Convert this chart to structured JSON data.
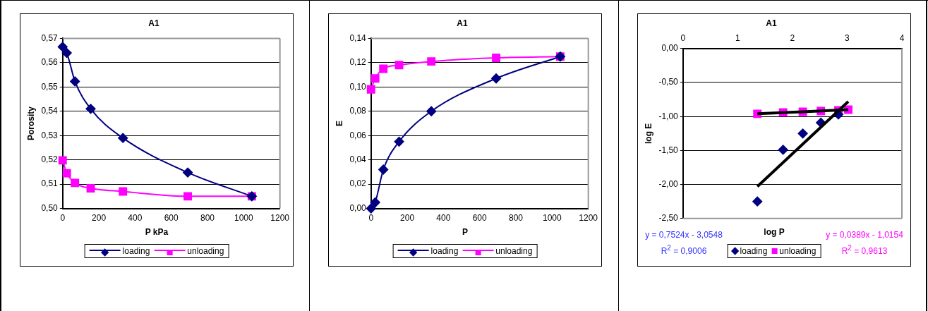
{
  "chart_data": [
    {
      "type": "line",
      "title": "A1",
      "xlabel": "P kPa",
      "ylabel": "Porosity",
      "x": [
        0,
        23,
        68,
        155,
        333,
        691,
        1045
      ],
      "series": [
        {
          "name": "loading",
          "color": "#000080",
          "marker": "diamond",
          "values": [
            0.5665,
            0.564,
            0.5523,
            0.541,
            0.529,
            0.5148,
            0.505
          ]
        },
        {
          "name": "unloading",
          "color": "#ff00ff",
          "marker": "square",
          "values": [
            0.5198,
            0.5145,
            0.5105,
            0.5083,
            0.507,
            0.505,
            0.505
          ]
        }
      ],
      "xlim": [
        0,
        1200
      ],
      "xticks": [
        0,
        200,
        400,
        600,
        800,
        1000,
        1200
      ],
      "ylim": [
        0.5,
        0.57
      ],
      "yticks": [
        {
          "value": 0.5,
          "label": "0,50"
        },
        {
          "value": 0.51,
          "label": "0,51"
        },
        {
          "value": 0.52,
          "label": "0,52"
        },
        {
          "value": 0.53,
          "label": "0,53"
        },
        {
          "value": 0.54,
          "label": "0,54"
        },
        {
          "value": 0.55,
          "label": "0,55"
        },
        {
          "value": 0.56,
          "label": "0,56"
        },
        {
          "value": 0.57,
          "label": "0,57"
        }
      ],
      "grid": "y",
      "legend": "bottom"
    },
    {
      "type": "line",
      "title": "A1",
      "xlabel": "P",
      "ylabel": "E",
      "x": [
        0,
        23,
        68,
        155,
        333,
        691,
        1045
      ],
      "series": [
        {
          "name": "loading",
          "color": "#000080",
          "marker": "diamond",
          "values": [
            0,
            0.005,
            0.032,
            0.055,
            0.08,
            0.107,
            0.125
          ]
        },
        {
          "name": "unloading",
          "color": "#ff00ff",
          "marker": "square",
          "values": [
            0.098,
            0.107,
            0.115,
            0.118,
            0.121,
            0.124,
            0.125
          ]
        }
      ],
      "xlim": [
        0,
        1200
      ],
      "xticks": [
        0,
        200,
        400,
        600,
        800,
        1000,
        1200
      ],
      "ylim": [
        0,
        0.14
      ],
      "yticks": [
        {
          "value": 0,
          "label": "0,00"
        },
        {
          "value": 0.02,
          "label": "0,02"
        },
        {
          "value": 0.04,
          "label": "0,04"
        },
        {
          "value": 0.06,
          "label": "0,06"
        },
        {
          "value": 0.08,
          "label": "0,08"
        },
        {
          "value": 0.1,
          "label": "0,10"
        },
        {
          "value": 0.12,
          "label": "0,12"
        },
        {
          "value": 0.14,
          "label": "0,14"
        }
      ],
      "grid": "y",
      "legend": "bottom"
    },
    {
      "type": "scatter",
      "title": "A1",
      "xlabel": "log P",
      "ylabel": "log E",
      "series": [
        {
          "name": "loading",
          "color": "#000080",
          "marker": "diamond",
          "x": [
            1.36,
            1.83,
            2.19,
            2.52,
            2.84
          ],
          "values": [
            -2.25,
            -1.49,
            -1.25,
            -1.09,
            -0.97
          ]
        },
        {
          "name": "unloading",
          "color": "#ff00ff",
          "marker": "square",
          "x": [
            1.36,
            1.83,
            2.19,
            2.52,
            2.84,
            3.02
          ],
          "values": [
            -0.96,
            -0.94,
            -0.93,
            -0.92,
            -0.91,
            -0.9
          ]
        },
        {
          "type": "line",
          "color": "#000000",
          "marker": "none",
          "x": [
            1.36,
            3.02
          ],
          "values": [
            -2.03,
            -0.78
          ]
        },
        {
          "type": "line",
          "color": "#000000",
          "marker": "none",
          "x": [
            1.36,
            3.02
          ],
          "values": [
            -0.96,
            -0.9
          ]
        }
      ],
      "xlim": [
        0,
        4
      ],
      "xticks": [
        0,
        1,
        2,
        3,
        4
      ],
      "ylim": [
        -2.5,
        0
      ],
      "yticks": [
        {
          "value": -2.5,
          "label": "-2,50"
        },
        {
          "value": -2,
          "label": "-2,00"
        },
        {
          "value": -1.5,
          "label": "-1,50"
        },
        {
          "value": -1,
          "label": "-1,00"
        },
        {
          "value": -0.5,
          "label": "-0,50"
        },
        {
          "value": 0,
          "label": "0,00"
        }
      ],
      "grid": "y",
      "legend": "bottom",
      "annotations": [
        "y = 0,7524x - 3,0548",
        "R$^{2}$ = 0,9006",
        "y = 0,0389x - 1,0154",
        "R$^{2}$ = 0,9613"
      ]
    }
  ]
}
